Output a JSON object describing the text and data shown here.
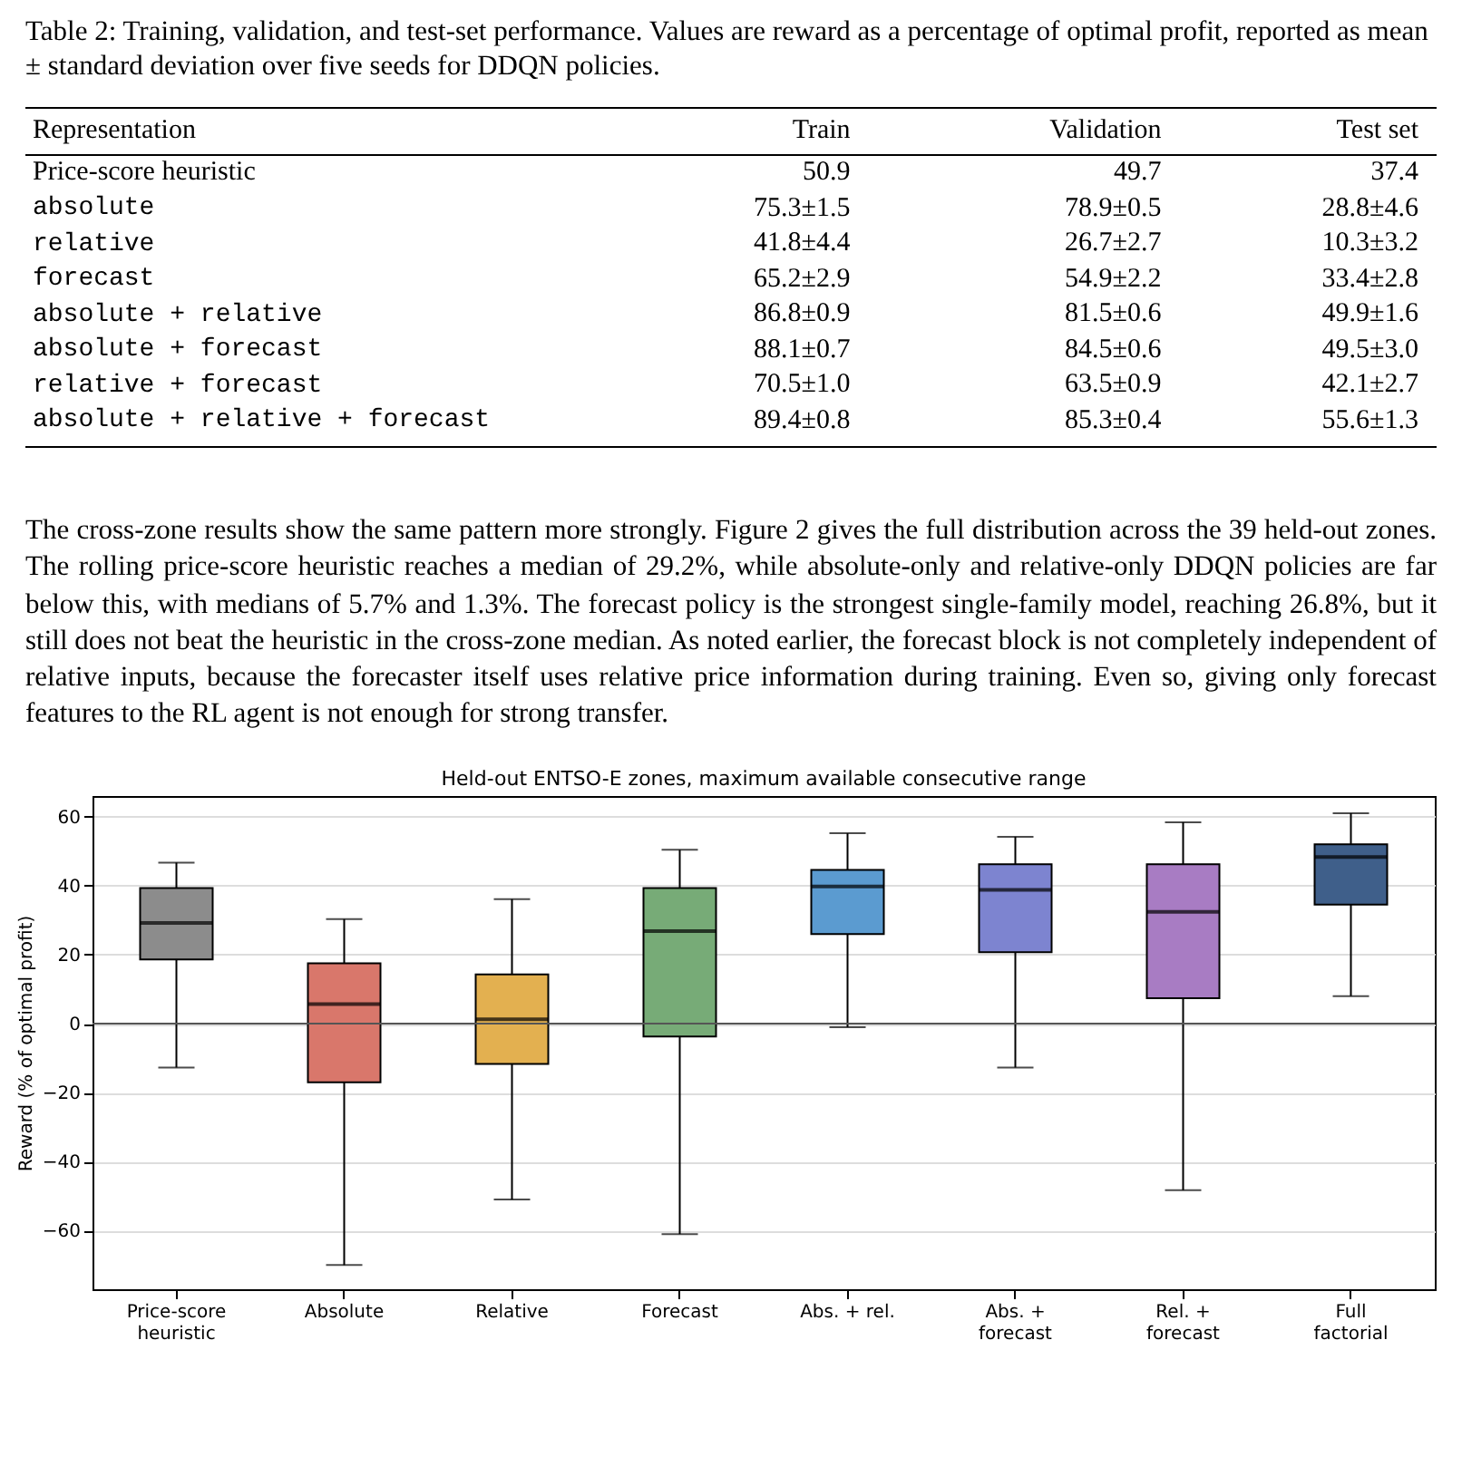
{
  "chart_data": [
    {
      "type": "other",
      "title": "Table 2: Training, validation, and test-set performance. Values are reward as a percentage of optimal profit, reported as mean ± standard deviation over five seeds for DDQN policies.",
      "annotations": [
        "Representation",
        "Train",
        "Validation",
        "Test set",
        "Price-score heuristic",
        "50.9",
        "49.7",
        "37.4",
        "absolute",
        "75.3±1.5",
        "78.9±0.5",
        "28.8±4.6",
        "relative",
        "41.8±4.4",
        "26.7±2.7",
        "10.3±3.2",
        "forecast",
        "65.2±2.9",
        "54.9±2.2",
        "33.4±2.8",
        "absolute + relative",
        "86.8±0.9",
        "81.5±0.6",
        "49.9±1.6",
        "absolute + forecast",
        "88.1±0.7",
        "84.5±0.6",
        "49.5±3.0",
        "relative + forecast",
        "70.5±1.0",
        "63.5±0.9",
        "42.1±2.7",
        "absolute + relative + forecast",
        "89.4±0.8",
        "85.3±0.4",
        "55.6±1.3"
      ]
    },
    {
      "type": "other",
      "annotations": [
        "The cross-zone results show the same pattern more strongly. Figure 2 gives the full distribution across the 39 held-out zones. The rolling price-score heuristic reaches a median of 29.2%, while absolute-only and relative-only DDQN policies are far below this, with medians of 5.7% and 1.3%. The forecast policy is the strongest single-family model, reaching 26.8%, but it still does not beat the heuristic in the cross-zone median. As noted earlier, the forecast block is not completely independent of relative inputs, because the forecaster itself uses relative price information during training. Even so, giving only forecast features to the RL agent is not enough for strong transfer."
      ]
    },
    {
      "type": "box",
      "title": "Held-out ENTSO-E zones, maximum available consecutive range",
      "ylabel": "Reward (% of optimal profit)",
      "categories": [
        "Price-score\nheuristic",
        "Absolute",
        "Relative",
        "Forecast",
        "Abs. + rel.",
        "Abs. +\nforecast",
        "Rel. +\nforecast",
        "Full\nfactorial"
      ],
      "colors": [
        "#8c8c8c",
        "#d9776b",
        "#e3b050",
        "#77ab77",
        "#5b9bd0",
        "#7d84d0",
        "#a87cc3",
        "#3f5f8a"
      ],
      "boxes": [
        {
          "low": -12.7,
          "q1": 18.6,
          "median": 29.2,
          "q3": 39.3,
          "high": 46.7
        },
        {
          "low": -70,
          "q1": -17,
          "median": 5.7,
          "q3": 17.5,
          "high": 30.3
        },
        {
          "low": -51,
          "q1": -11.7,
          "median": 1.3,
          "q3": 14.3,
          "high": 36.1
        },
        {
          "low": -61,
          "q1": -3.7,
          "median": 26.8,
          "q3": 39.3,
          "high": 50.4
        },
        {
          "low": -1,
          "q1": 26,
          "median": 39.8,
          "q3": 44.6,
          "high": 55.2
        },
        {
          "low": -12.7,
          "q1": 20.7,
          "median": 38.8,
          "q3": 46.2,
          "high": 54.2
        },
        {
          "low": -48.3,
          "q1": 7.4,
          "median": 32.4,
          "q3": 46.2,
          "high": 58.4
        },
        {
          "low": 8,
          "q1": 34.5,
          "median": 48.3,
          "q3": 52,
          "high": 61
        }
      ],
      "ylim": [
        -77,
        66
      ],
      "yticks": [
        -60,
        -40,
        -20,
        0,
        20,
        40,
        60
      ],
      "grid": "y",
      "ref_lines": [
        {
          "axis": "y",
          "value": 0,
          "color": "#555555"
        }
      ]
    }
  ]
}
